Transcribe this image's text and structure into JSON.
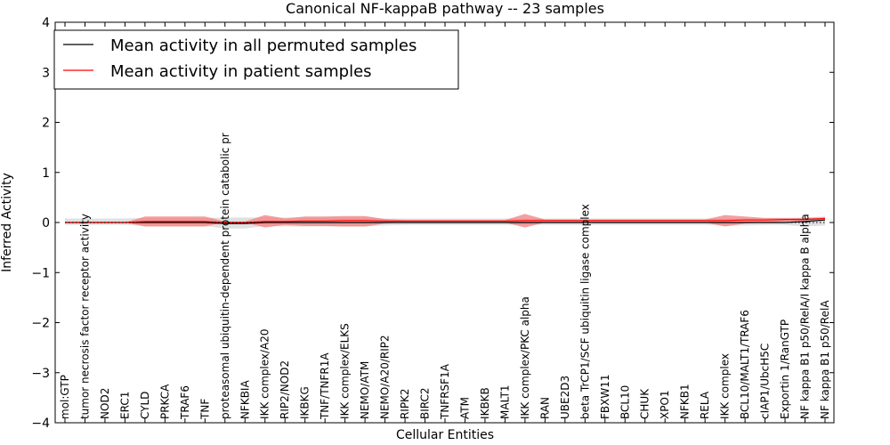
{
  "chart_data": {
    "type": "line",
    "title": "Canonical NF-kappaB pathway -- 23 samples",
    "xlabel": "Cellular Entities",
    "ylabel": "Inferred Activity",
    "ylim": [
      -4,
      4
    ],
    "yticks": [
      4,
      3,
      2,
      1,
      0,
      -1,
      -2,
      -3,
      -4
    ],
    "ytick_labels": [
      "4",
      "3",
      "2",
      "1",
      "0",
      "−1",
      "−2",
      "−3",
      "−4"
    ],
    "legend_position": "upper-left",
    "categories": [
      "mol:GTP",
      "tumor necrosis factor receptor activity",
      "NOD2",
      "ERC1",
      "CYLD",
      "PRKCA",
      "TRAF6",
      "TNF",
      "proteasomal ubiquitin-dependent protein catabolic pr",
      "NFKBIA",
      "IKK complex/A20",
      "RIP2/NOD2",
      "IKBKG",
      "TNF/TNFR1A",
      "IKK complex/ELKS",
      "NEMO/ATM",
      "NEMO/A20/RIP2",
      "RIPK2",
      "BIRC2",
      "TNFRSF1A",
      "ATM",
      "IKBKB",
      "MALT1",
      "IKK complex/PKC alpha",
      "RAN",
      "UBE2D3",
      "beta TrCP1/SCF ubiquitin ligase complex",
      "FBXW11",
      "BCL10",
      "CHUK",
      "XPO1",
      "NFKB1",
      "RELA",
      "IKK complex",
      "BCL10/MALT1/TRAF6",
      "cIAP1/UbcH5C",
      "Exportin 1/RanGTP",
      "NF kappa B1 p50/RelA/I kappa B alpha",
      "NF kappa B1 p50/RelA"
    ],
    "series": [
      {
        "name": "Mean activity in all permuted samples",
        "color": "#000000",
        "values": [
          0,
          0,
          0,
          0,
          0,
          0,
          0,
          0,
          -0.02,
          -0.02,
          0,
          0,
          0,
          0,
          0,
          0,
          0,
          0,
          0,
          0,
          0,
          0,
          0,
          0,
          0,
          0,
          0,
          0,
          0,
          0,
          0,
          0,
          0,
          0,
          0,
          0,
          0,
          0.02,
          0.05
        ],
        "band_low": [
          -0.05,
          -0.05,
          -0.05,
          -0.05,
          -0.07,
          -0.07,
          -0.07,
          -0.07,
          -0.12,
          -0.12,
          -0.07,
          -0.08,
          -0.08,
          -0.08,
          -0.08,
          -0.08,
          -0.06,
          -0.05,
          -0.05,
          -0.05,
          -0.05,
          -0.05,
          -0.05,
          -0.05,
          -0.05,
          -0.05,
          -0.05,
          -0.05,
          -0.05,
          -0.05,
          -0.05,
          -0.05,
          -0.05,
          -0.06,
          -0.06,
          -0.05,
          -0.05,
          -0.08,
          -0.06
        ],
        "band_high": [
          0.08,
          0.08,
          0.08,
          0.08,
          0.09,
          0.09,
          0.09,
          0.09,
          0.1,
          0.1,
          0.1,
          0.1,
          0.1,
          0.1,
          0.1,
          0.1,
          0.08,
          0.08,
          0.08,
          0.08,
          0.08,
          0.08,
          0.08,
          0.08,
          0.08,
          0.08,
          0.08,
          0.08,
          0.08,
          0.08,
          0.08,
          0.08,
          0.08,
          0.08,
          0.08,
          0.08,
          0.08,
          0.1,
          0.12
        ]
      },
      {
        "name": "Mean activity in patient samples",
        "color": "#ff0000",
        "values": [
          0,
          0,
          0,
          0,
          0.02,
          0.02,
          0.02,
          0.02,
          0,
          0,
          0.02,
          0.02,
          0.03,
          0.03,
          0.04,
          0.04,
          0.03,
          0.03,
          0.03,
          0.03,
          0.03,
          0.03,
          0.03,
          0.04,
          0.04,
          0.04,
          0.04,
          0.04,
          0.04,
          0.04,
          0.04,
          0.04,
          0.04,
          0.04,
          0.05,
          0.05,
          0.06,
          0.06,
          0.08
        ],
        "band_low": [
          0,
          0,
          0,
          0,
          -0.08,
          -0.08,
          -0.08,
          -0.08,
          0,
          0,
          -0.1,
          -0.05,
          -0.07,
          -0.07,
          -0.08,
          -0.08,
          -0.02,
          0,
          0,
          0,
          0,
          0,
          0,
          -0.1,
          0,
          0,
          0,
          0,
          0,
          0,
          0,
          0,
          0,
          -0.08,
          -0.02,
          0,
          0.02,
          0.04,
          0.06
        ],
        "band_high": [
          0,
          0,
          0,
          0,
          0.12,
          0.12,
          0.12,
          0.12,
          0.02,
          0.02,
          0.15,
          0.08,
          0.12,
          0.12,
          0.13,
          0.13,
          0.07,
          0.05,
          0.05,
          0.05,
          0.05,
          0.05,
          0.05,
          0.17,
          0.06,
          0.06,
          0.06,
          0.06,
          0.06,
          0.06,
          0.06,
          0.06,
          0.06,
          0.15,
          0.12,
          0.09,
          0.09,
          0.09,
          0.1
        ]
      }
    ]
  }
}
